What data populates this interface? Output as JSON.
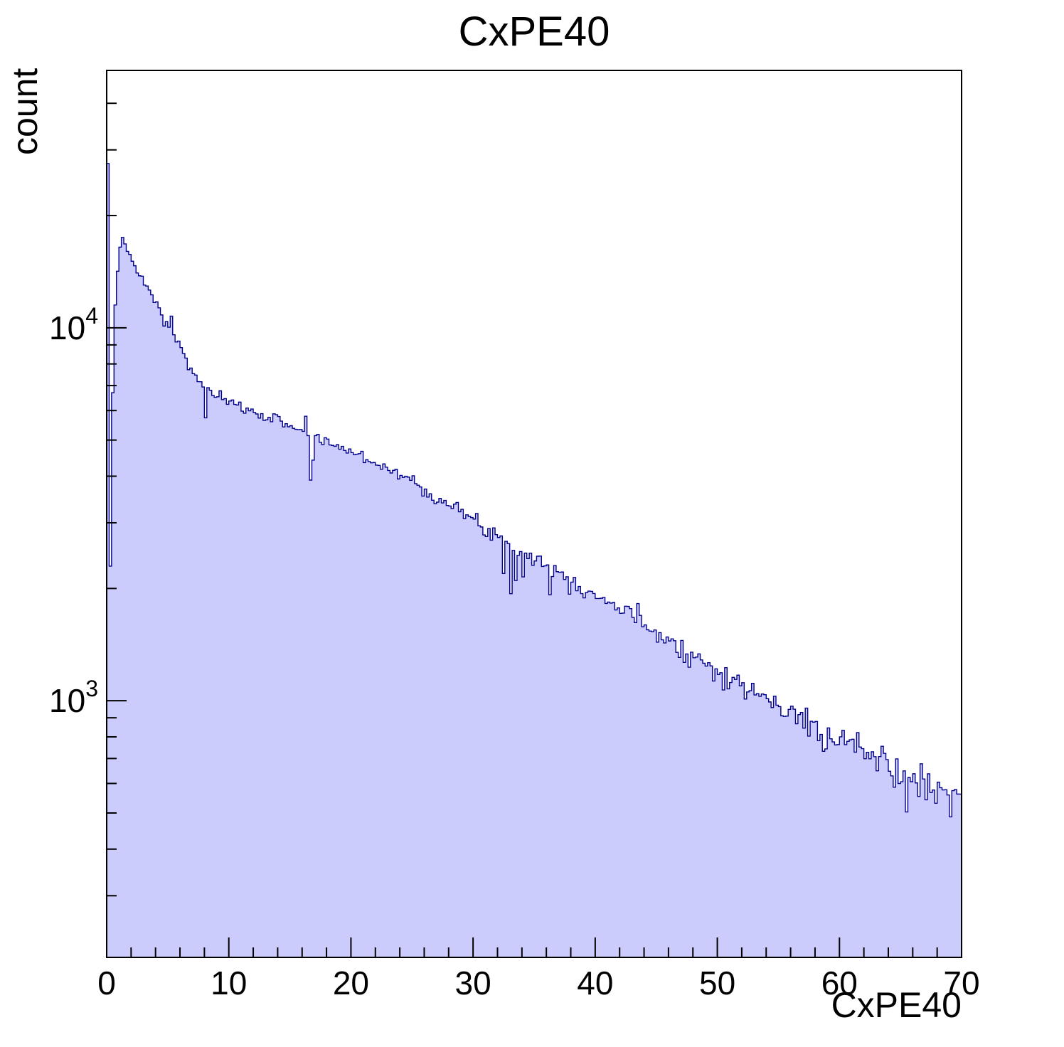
{
  "page": {
    "background": "#ffffff"
  },
  "chart_data": {
    "type": "histogram",
    "title": "CxPE40",
    "xlabel": "CxPE40",
    "ylabel": "count",
    "x_range": [
      0,
      70
    ],
    "y_range": [
      205,
      49000
    ],
    "y_scale": "log",
    "grid": false,
    "legend": "none",
    "n_bins": 350,
    "bin_width": 0.2,
    "x_major_ticks": [
      0,
      10,
      20,
      30,
      40,
      50,
      60,
      70
    ],
    "x_minor_step": 2,
    "y_major_ticks": [
      1000,
      10000
    ],
    "fill_color": "#ccccfc",
    "line_color": "#00008b",
    "frame_color": "#000000",
    "noise_seed": 7,
    "noise_scale": 1.3,
    "anchors": [
      [
        0.1,
        27000
      ],
      [
        0.3,
        2300
      ],
      [
        0.5,
        6800
      ],
      [
        0.7,
        11500
      ],
      [
        0.9,
        14200
      ],
      [
        1.1,
        16300
      ],
      [
        1.3,
        17600
      ],
      [
        1.6,
        16700
      ],
      [
        2.0,
        15100
      ],
      [
        2.5,
        14100
      ],
      [
        3.0,
        13300
      ],
      [
        3.5,
        12500
      ],
      [
        4.0,
        11700
      ],
      [
        4.5,
        11000
      ],
      [
        5.0,
        10300
      ],
      [
        5.5,
        9600
      ],
      [
        6.0,
        8900
      ],
      [
        6.5,
        8200
      ],
      [
        7.0,
        7600
      ],
      [
        7.5,
        7200
      ],
      [
        8.0,
        6950
      ],
      [
        8.5,
        6750
      ],
      [
        9.0,
        6550
      ],
      [
        9.5,
        6400
      ],
      [
        10,
        6300
      ],
      [
        11,
        6100
      ],
      [
        12,
        5950
      ],
      [
        13,
        5800
      ],
      [
        14,
        5650
      ],
      [
        15,
        5500
      ],
      [
        16,
        5300
      ],
      [
        17,
        5100
      ],
      [
        18,
        4950
      ],
      [
        19,
        4800
      ],
      [
        20,
        4650
      ],
      [
        21,
        4500
      ],
      [
        22,
        4350
      ],
      [
        23,
        4200
      ],
      [
        24,
        4050
      ],
      [
        25,
        3880
      ],
      [
        26,
        3700
      ],
      [
        27,
        3520
      ],
      [
        28,
        3350
      ],
      [
        29,
        3200
      ],
      [
        30,
        3050
      ],
      [
        31,
        2900
      ],
      [
        32,
        2780
      ],
      [
        33,
        2650
      ],
      [
        34,
        2530
      ],
      [
        35,
        2420
      ],
      [
        36,
        2310
      ],
      [
        37,
        2210
      ],
      [
        38,
        2110
      ],
      [
        39,
        2010
      ],
      [
        40,
        1930
      ],
      [
        41,
        1850
      ],
      [
        42,
        1770
      ],
      [
        43,
        1690
      ],
      [
        44,
        1610
      ],
      [
        45,
        1540
      ],
      [
        46,
        1460
      ],
      [
        47,
        1390
      ],
      [
        48,
        1320
      ],
      [
        49,
        1260
      ],
      [
        50,
        1210
      ],
      [
        51,
        1160
      ],
      [
        52,
        1110
      ],
      [
        53,
        1060
      ],
      [
        54,
        1010
      ],
      [
        55,
        965
      ],
      [
        56,
        925
      ],
      [
        57,
        885
      ],
      [
        58,
        850
      ],
      [
        59,
        818
      ],
      [
        60,
        788
      ],
      [
        61,
        758
      ],
      [
        62,
        728
      ],
      [
        63,
        700
      ],
      [
        64,
        672
      ],
      [
        65,
        645
      ],
      [
        66,
        620
      ],
      [
        67,
        595
      ],
      [
        68,
        572
      ],
      [
        69,
        550
      ],
      [
        70,
        532
      ]
    ],
    "spikes": [
      [
        8.1,
        0.84
      ],
      [
        16.3,
        1.1
      ],
      [
        16.6,
        0.74
      ],
      [
        16.9,
        0.88
      ],
      [
        32.5,
        0.8
      ],
      [
        33.1,
        0.74
      ],
      [
        33.5,
        0.82
      ],
      [
        34.1,
        0.86
      ],
      [
        36.3,
        0.86
      ],
      [
        5.2,
        1.07
      ],
      [
        4.7,
        0.93
      ],
      [
        52.3,
        0.88
      ],
      [
        58.7,
        0.86
      ],
      [
        61.4,
        1.1
      ],
      [
        65.5,
        0.72
      ],
      [
        69.1,
        0.84
      ]
    ]
  }
}
